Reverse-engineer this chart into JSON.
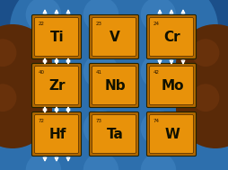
{
  "bg_color": "#1b4f8a",
  "sphere_blue_color": "#2d6fad",
  "sphere_blue_hi": "#4a8fcc",
  "sphere_brown_color": "#5a2a08",
  "sphere_brown_hi": "#7a3a10",
  "box_face": "#e8920a",
  "box_outer": "#b06800",
  "box_inner_edge": "#4a2800",
  "text_color": "#111100",
  "number_color": "#221100",
  "arrow_color": "#ffffff",
  "elements": [
    {
      "symbol": "Ti",
      "number": "22",
      "col": 0,
      "row": 0,
      "spins_up": true,
      "spins_down": true
    },
    {
      "symbol": "V",
      "number": "23",
      "col": 1,
      "row": 0,
      "spins_up": false,
      "spins_down": false
    },
    {
      "symbol": "Cr",
      "number": "24",
      "col": 2,
      "row": 0,
      "spins_up": true,
      "spins_down": true
    },
    {
      "symbol": "Zr",
      "number": "40",
      "col": 0,
      "row": 1,
      "spins_up": true,
      "spins_down": true
    },
    {
      "symbol": "Nb",
      "number": "41",
      "col": 1,
      "row": 1,
      "spins_up": false,
      "spins_down": false
    },
    {
      "symbol": "Mo",
      "number": "42",
      "col": 2,
      "row": 1,
      "spins_up": false,
      "spins_down": false
    },
    {
      "symbol": "Hf",
      "number": "72",
      "col": 0,
      "row": 2,
      "spins_up": true,
      "spins_down": true
    },
    {
      "symbol": "Ta",
      "number": "73",
      "col": 1,
      "row": 2,
      "spins_up": false,
      "spins_down": false
    },
    {
      "symbol": "W",
      "number": "74",
      "col": 2,
      "row": 2,
      "spins_up": false,
      "spins_down": false
    }
  ]
}
